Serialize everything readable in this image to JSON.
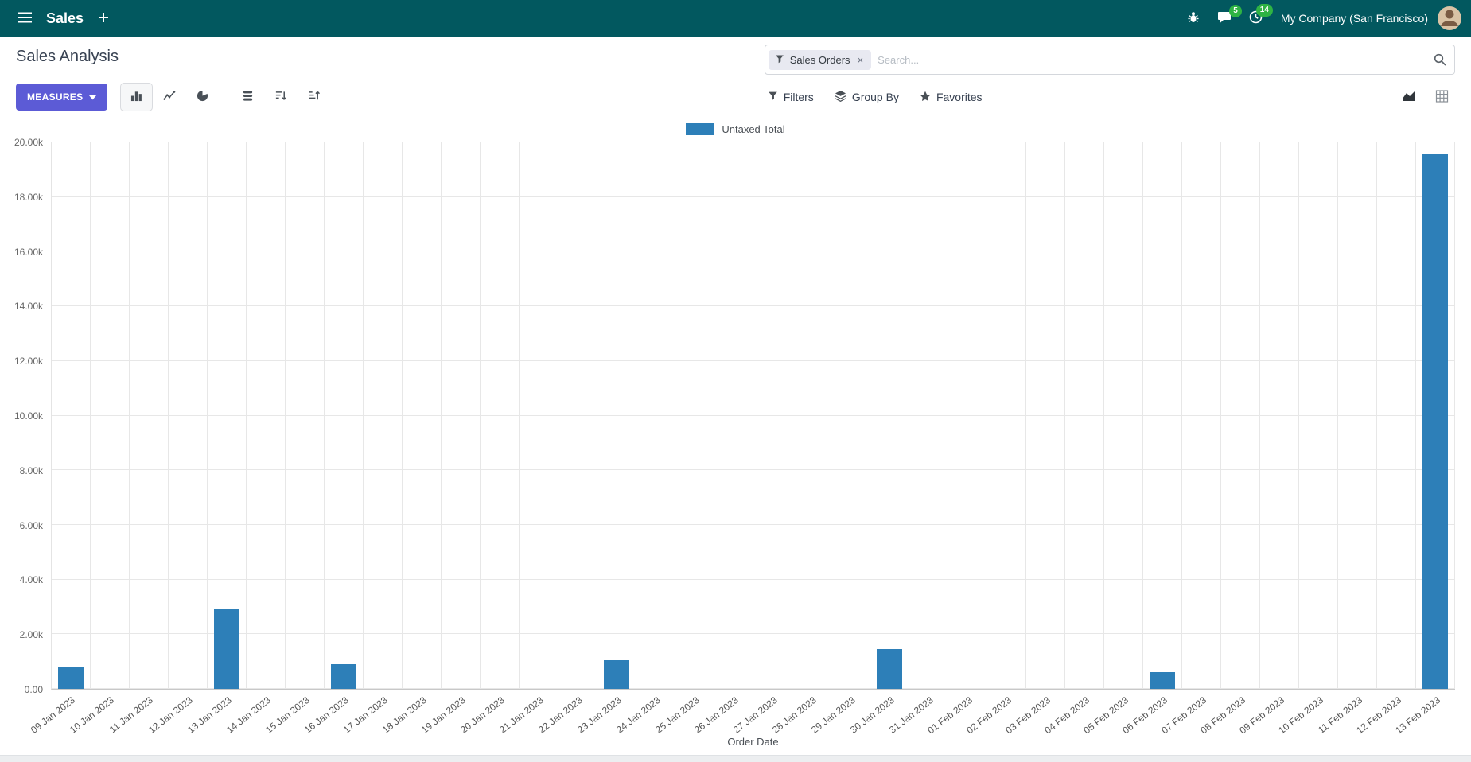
{
  "colors": {
    "navbar": "#02585f",
    "primary": "#5c5bd6",
    "bar": "#2d7fb8",
    "badge": "#2fb344",
    "icon": "#495057"
  },
  "nav": {
    "app_name": "Sales",
    "company": "My Company (San Francisco)",
    "messages_badge": "5",
    "activities_badge": "14"
  },
  "control_panel": {
    "title": "Sales Analysis",
    "measures_button": "MEASURES",
    "filters": "Filters",
    "group_by": "Group By",
    "favorites": "Favorites",
    "search": {
      "facet_label": "Sales Orders",
      "facet_remove": "×",
      "placeholder": "Search..."
    }
  },
  "chart_data": {
    "type": "bar",
    "title": "",
    "xlabel": "Order Date",
    "ylabel": "",
    "ylim": [
      0,
      20000
    ],
    "legend_position": "top",
    "grid": true,
    "ytick_labels": [
      "0.00",
      "2.00k",
      "4.00k",
      "6.00k",
      "8.00k",
      "10.00k",
      "12.00k",
      "14.00k",
      "16.00k",
      "18.00k",
      "20.00k"
    ],
    "categories": [
      "09 Jan 2023",
      "10 Jan 2023",
      "11 Jan 2023",
      "12 Jan 2023",
      "13 Jan 2023",
      "14 Jan 2023",
      "15 Jan 2023",
      "16 Jan 2023",
      "17 Jan 2023",
      "18 Jan 2023",
      "19 Jan 2023",
      "20 Jan 2023",
      "21 Jan 2023",
      "22 Jan 2023",
      "23 Jan 2023",
      "24 Jan 2023",
      "25 Jan 2023",
      "26 Jan 2023",
      "27 Jan 2023",
      "28 Jan 2023",
      "29 Jan 2023",
      "30 Jan 2023",
      "31 Jan 2023",
      "01 Feb 2023",
      "02 Feb 2023",
      "03 Feb 2023",
      "04 Feb 2023",
      "05 Feb 2023",
      "06 Feb 2023",
      "07 Feb 2023",
      "08 Feb 2023",
      "09 Feb 2023",
      "10 Feb 2023",
      "11 Feb 2023",
      "12 Feb 2023",
      "13 Feb 2023"
    ],
    "series": [
      {
        "name": "Untaxed Total",
        "color": "#2d7fb8",
        "values": [
          800,
          0,
          0,
          0,
          2900,
          0,
          0,
          900,
          0,
          0,
          0,
          0,
          0,
          0,
          1050,
          0,
          0,
          0,
          0,
          0,
          0,
          1450,
          0,
          0,
          0,
          0,
          0,
          0,
          620,
          0,
          0,
          0,
          0,
          0,
          0,
          19600
        ]
      }
    ]
  }
}
